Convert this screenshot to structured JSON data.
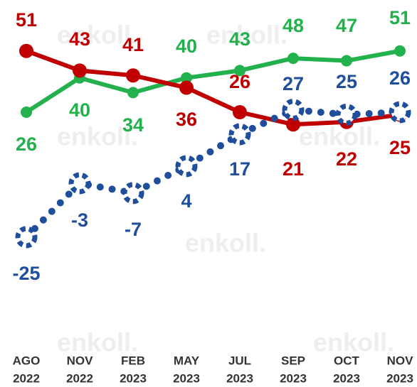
{
  "chart_data": {
    "type": "line",
    "watermark": "enkoll.",
    "categories": [
      [
        "AGO",
        "2022"
      ],
      [
        "NOV",
        "2022"
      ],
      [
        "FEB",
        "2023"
      ],
      [
        "MAY",
        "2023"
      ],
      [
        "JUL",
        "2023"
      ],
      [
        "SEP",
        "2023"
      ],
      [
        "OCT",
        "2023"
      ],
      [
        "NOV",
        "2023"
      ]
    ],
    "series": [
      {
        "color": "#22b14c",
        "style": "solid",
        "values": [
          26,
          40,
          34,
          40,
          43,
          48,
          47,
          51
        ]
      },
      {
        "color": "#c00000",
        "style": "solid",
        "values": [
          51,
          43,
          41,
          36,
          26,
          21,
          22,
          25
        ]
      },
      {
        "color": "#1f4e9c",
        "style": "dotted",
        "values": [
          -25,
          -3,
          -7,
          4,
          17,
          27,
          25,
          26
        ]
      }
    ]
  }
}
